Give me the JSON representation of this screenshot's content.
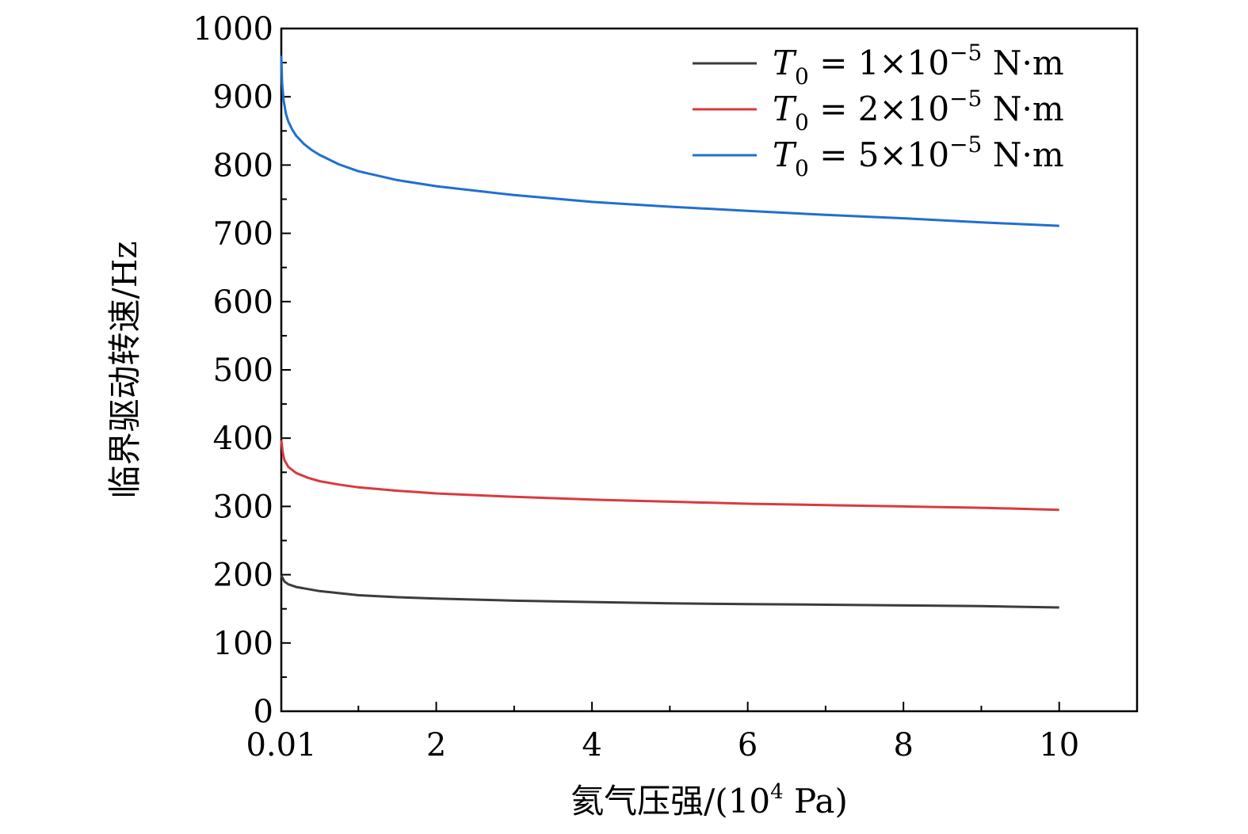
{
  "chart_data": {
    "type": "line",
    "xlabel_prefix": "氦气压强/(10",
    "xlabel_sup": "4",
    "xlabel_suffix": " Pa)",
    "ylabel": "临界驱动转速/Hz",
    "xlim": [
      0.01,
      11
    ],
    "ylim": [
      0,
      1000
    ],
    "xticks": [
      0.01,
      2,
      4,
      6,
      8,
      10
    ],
    "xtick_labels": [
      "0.01",
      "2",
      "4",
      "6",
      "8",
      "10"
    ],
    "xminor": [
      1,
      3,
      5,
      7,
      9
    ],
    "yticks": [
      0,
      100,
      200,
      300,
      400,
      500,
      600,
      700,
      800,
      900,
      1000
    ],
    "ytick_labels": [
      "0",
      "100",
      "200",
      "300",
      "400",
      "500",
      "600",
      "700",
      "800",
      "900",
      "1000"
    ],
    "legend_position": "top-right",
    "series": [
      {
        "name": "T0 = 1×10−5 N·m",
        "legend": {
          "sym": "T",
          "sub": "0",
          "eq": " = 1×10",
          "sup": "−5",
          "unit": " N·m"
        },
        "color": "#3c3c3c",
        "x": [
          0.01,
          0.05,
          0.1,
          0.2,
          0.35,
          0.5,
          0.75,
          1.0,
          1.5,
          2.0,
          3.0,
          4.0,
          5.0,
          6.0,
          7.0,
          8.0,
          9.0,
          10.0
        ],
        "y": [
          199,
          190,
          186,
          182,
          179,
          176,
          173,
          170,
          167,
          165,
          162,
          160,
          158,
          157,
          156,
          155,
          154,
          152
        ]
      },
      {
        "name": "T0 = 2×10−5 N·m",
        "legend": {
          "sym": "T",
          "sub": "0",
          "eq": " = 2×10",
          "sup": "−5",
          "unit": " N·m"
        },
        "color": "#d93a3f",
        "x": [
          0.01,
          0.03,
          0.05,
          0.1,
          0.2,
          0.35,
          0.5,
          0.75,
          1.0,
          1.5,
          2.0,
          3.0,
          4.0,
          5.0,
          6.0,
          7.0,
          8.0,
          9.0,
          10.0
        ],
        "y": [
          397,
          378,
          368,
          358,
          349,
          342,
          337,
          332,
          328,
          323,
          319,
          314,
          310,
          307,
          304,
          302,
          300,
          298,
          295
        ]
      },
      {
        "name": "T0 = 5×10−5 N·m",
        "legend": {
          "sym": "T",
          "sub": "0",
          "eq": " = 5×10",
          "sup": "−5",
          "unit": " N·m"
        },
        "color": "#1f6fd1",
        "x": [
          0.01,
          0.02,
          0.04,
          0.07,
          0.1,
          0.15,
          0.2,
          0.3,
          0.4,
          0.5,
          0.75,
          1.0,
          1.5,
          2.0,
          3.0,
          4.0,
          5.0,
          6.0,
          7.0,
          8.0,
          9.0,
          10.0
        ],
        "y": [
          960,
          920,
          895,
          875,
          864,
          852,
          843,
          831,
          822,
          815,
          801,
          791,
          778,
          769,
          756,
          746,
          739,
          733,
          727,
          722,
          716,
          711
        ]
      }
    ]
  }
}
